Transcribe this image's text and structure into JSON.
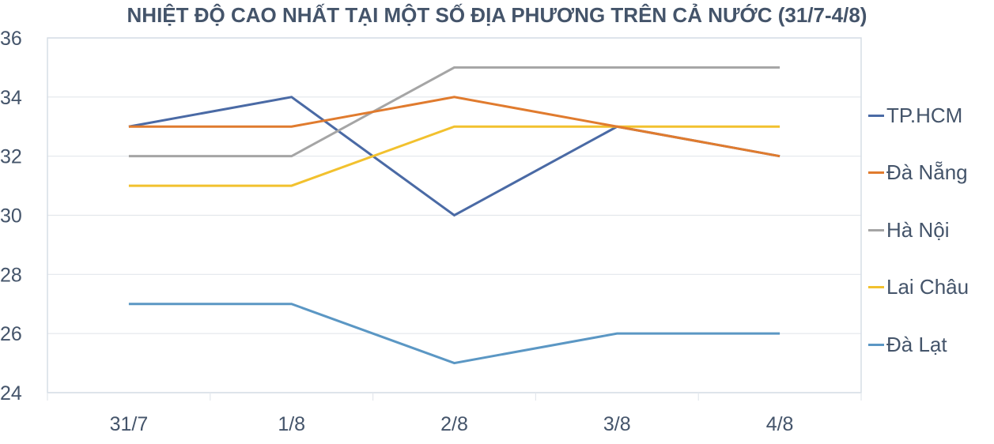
{
  "chart_data": {
    "type": "line",
    "title": "NHIỆT ĐỘ CAO NHẤT TẠI MỘT SỐ ĐỊA PHƯƠNG TRÊN CẢ NƯỚC (31/7-4/8)",
    "xlabel": "",
    "ylabel": "",
    "categories": [
      "31/7",
      "1/8",
      "2/8",
      "3/8",
      "4/8"
    ],
    "ylim": [
      24,
      36
    ],
    "yticks": [
      "24",
      "26",
      "28",
      "30",
      "32",
      "34",
      "36"
    ],
    "grid": true,
    "legend_position": "right",
    "series": [
      {
        "name": "TP.HCM",
        "color": "#4a6aa5",
        "values": [
          33,
          34,
          30,
          33,
          32
        ]
      },
      {
        "name": "Đà Nẵng",
        "color": "#e07b2e",
        "values": [
          33,
          33,
          34,
          33,
          32
        ]
      },
      {
        "name": "Hà Nội",
        "color": "#a5a5a5",
        "values": [
          32,
          32,
          35,
          35,
          35
        ]
      },
      {
        "name": "Lai Châu",
        "color": "#f2c12e",
        "values": [
          31,
          31,
          33,
          33,
          33
        ]
      },
      {
        "name": "Đà Lạt",
        "color": "#5b97c4",
        "values": [
          27,
          27,
          25,
          26,
          26
        ]
      }
    ]
  }
}
